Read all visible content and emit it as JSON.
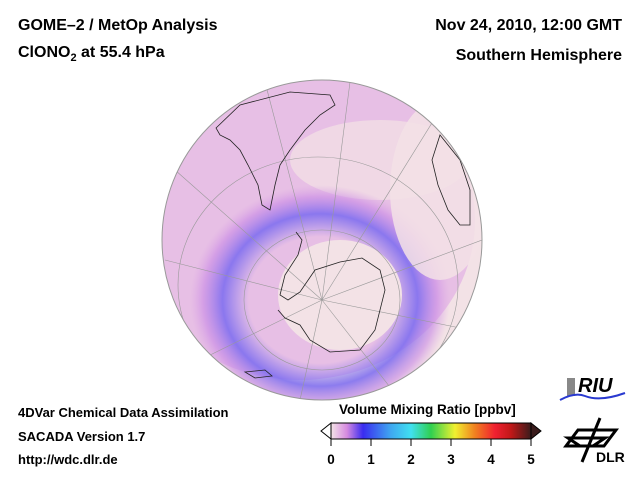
{
  "header": {
    "title_line1": "GOME–2 / MetOp Analysis",
    "species_main": "ClONO",
    "species_sub": "2",
    "species_rest": " at 55.4 hPa",
    "date": "Nov 24, 2010, 12:00 GMT",
    "region": "Southern Hemisphere"
  },
  "footer": {
    "line1": "4DVar Chemical Data Assimilation",
    "line2": "SACADA Version 1.7",
    "line3": "http://wdc.dlr.de"
  },
  "colorbar": {
    "title": "Volume Mixing Ratio [ppbv]",
    "ticks": [
      "0",
      "1",
      "2",
      "3",
      "4",
      "5"
    ],
    "range": [
      0,
      5
    ],
    "colors": [
      "#f4e4e6",
      "#d58ae0",
      "#3a2cf0",
      "#3fc8f0",
      "#40e0f0",
      "#30d050",
      "#f0f030",
      "#f07020",
      "#f02030",
      "#d01010",
      "#402020"
    ]
  },
  "logos": {
    "riu": "RIU",
    "dlr": "DLR"
  }
}
